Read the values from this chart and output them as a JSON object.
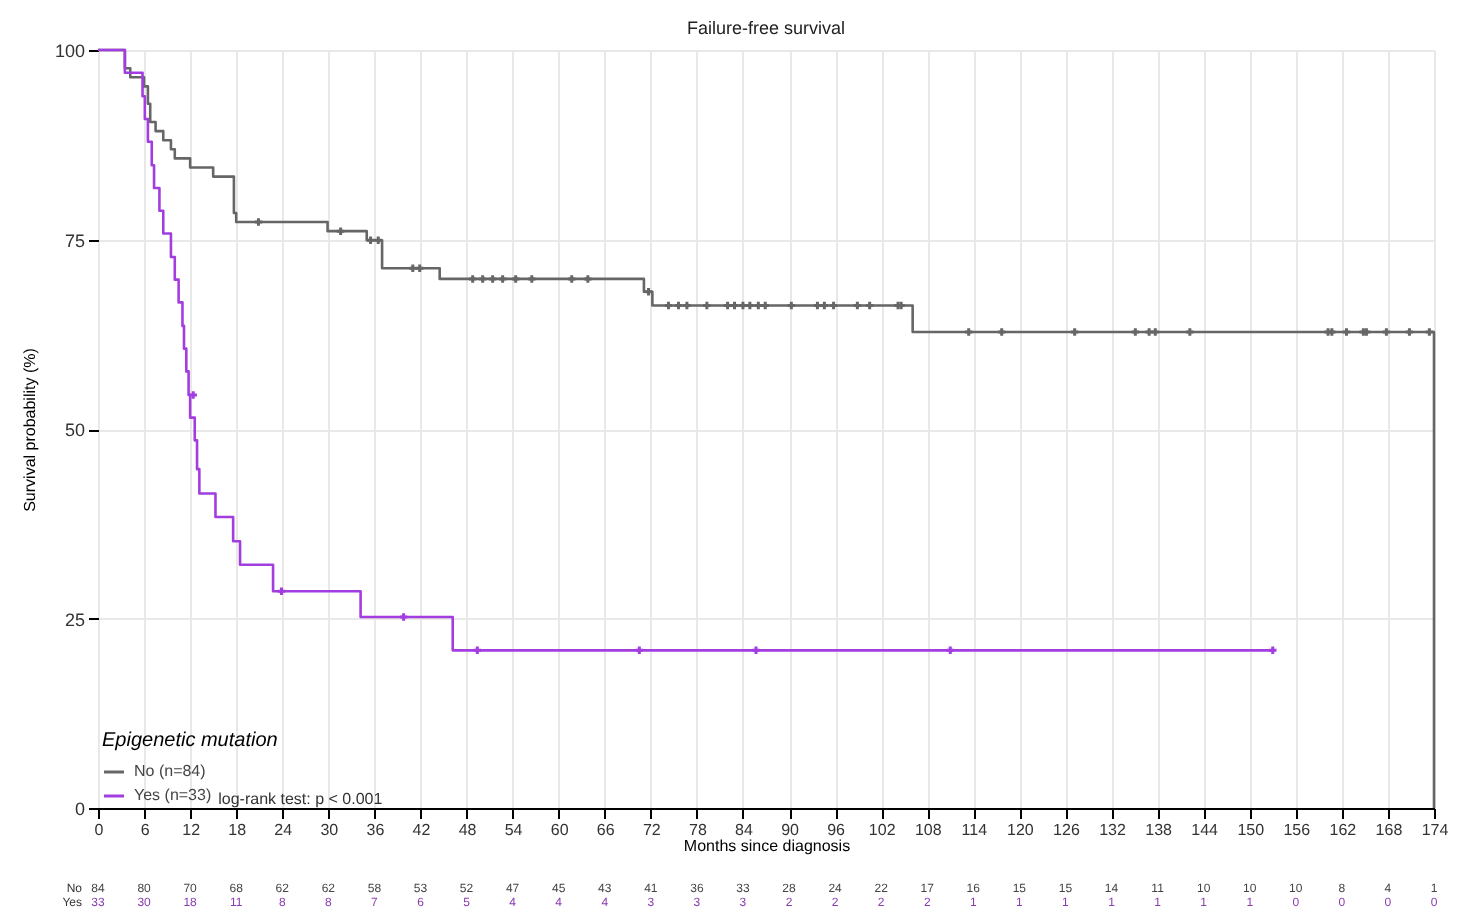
{
  "chart_data": {
    "type": "step",
    "title": "Failure-free survival",
    "xlabel": "Months since diagnosis",
    "ylabel": "Survival probability (%)",
    "legend_title": "Epigenetic mutation",
    "legend": "bottom left",
    "grid": true,
    "xlim": [
      0,
      174
    ],
    "xticks": [
      0,
      6,
      12,
      18,
      24,
      30,
      36,
      42,
      48,
      54,
      60,
      66,
      72,
      78,
      84,
      90,
      96,
      102,
      108,
      114,
      120,
      126,
      132,
      138,
      144,
      150,
      156,
      162,
      168,
      174
    ],
    "ylim": [
      0,
      100
    ],
    "yticks": [
      0,
      25,
      50,
      75,
      100
    ],
    "series": [
      {
        "name": "No (n=84)",
        "color": "#666666",
        "x": [
          0,
          3.5,
          4.2,
          6,
          6.5,
          6.8,
          7.5,
          8.5,
          9.5,
          10,
          12,
          15,
          17.7,
          18,
          29.9,
          35,
          37,
          44.5,
          71.1,
          72.2,
          106.1,
          174
        ],
        "values": [
          100,
          97.6,
          96.4,
          95.2,
          92.9,
          90.5,
          89.3,
          88.1,
          86.9,
          85.7,
          84.5,
          83.3,
          78.5,
          77.3,
          76.1,
          74.9,
          71.2,
          69.8,
          68.1,
          66.3,
          62.8,
          0
        ]
      },
      {
        "name": "Yes (n=33)",
        "color": "#a23ddf",
        "x": [
          0,
          3.5,
          5.8,
          6.1,
          6.5,
          7,
          7.3,
          8,
          8.5,
          9.5,
          10,
          10.5,
          11,
          11.2,
          11.5,
          11.8,
          12,
          12.6,
          12.9,
          13.2,
          15.3,
          17.6,
          18.5,
          22.8,
          34.2,
          46.2,
          153
        ],
        "values": [
          100,
          97,
          93.9,
          90.9,
          87.9,
          84.8,
          81.8,
          78.8,
          75.8,
          72.7,
          69.7,
          66.7,
          63.6,
          60.6,
          57.6,
          54.5,
          51.5,
          48.5,
          44.7,
          41.5,
          38.4,
          35.2,
          32.1,
          28.6,
          25.2,
          20.8,
          20.8
        ]
      },
      {
        "type": "scatter",
        "marker": "cross",
        "color": "#666666",
        "x": [
          20.9,
          31.6,
          35.5,
          36.5,
          41,
          41.9,
          48.8,
          50.1,
          51.4,
          52.7,
          54.4,
          56.5,
          61.7,
          63.8,
          71.7,
          74.3,
          75.6,
          76.7,
          79.3,
          82,
          82.9,
          84,
          84.9,
          86,
          86.9,
          90.3,
          93.7,
          94.6,
          95.8,
          98.9,
          100.5,
          104.2,
          104.6,
          113.4,
          117.7,
          127.2,
          135.1,
          136.9,
          137.7,
          142.2,
          160.2,
          160.7,
          162.6,
          164.8,
          165.2,
          167.8,
          170.8,
          173.4
        ],
        "values": [
          77.3,
          76.1,
          74.9,
          74.9,
          71.2,
          71.2,
          69.8,
          69.8,
          69.8,
          69.8,
          69.8,
          69.8,
          69.8,
          69.8,
          68.1,
          66.3,
          66.3,
          66.3,
          66.3,
          66.3,
          66.3,
          66.3,
          66.3,
          66.3,
          66.3,
          66.3,
          66.3,
          66.3,
          66.3,
          66.3,
          66.3,
          66.3,
          66.3,
          62.8,
          62.8,
          62.8,
          62.8,
          62.8,
          62.8,
          62.8,
          62.8,
          62.8,
          62.8,
          62.8,
          62.8,
          62.8,
          62.8,
          62.8
        ]
      },
      {
        "type": "scatter",
        "marker": "cross",
        "color": "#a23ddf",
        "x": [
          12.4,
          23.9,
          39.8,
          49.4,
          70.5,
          85.7,
          111,
          153
        ],
        "values": [
          54.5,
          28.6,
          25.2,
          20.8,
          20.8,
          20.8,
          20.8,
          20.8
        ]
      }
    ],
    "annotations": [
      "log-rank test: p < 0.001",
      "No",
      "Yes",
      "84 80 70 68 62 62 58 53 52 47 45 43 41 36 33 28 24 22 17 16 15 15 14 11 10 10 10 8 4 1",
      "33 30 18 11 8 8 7 6 5 4 4 4 3 3 3 2 2 2 2 1 1 1 1 1 1 1 0 0 0 0"
    ]
  }
}
